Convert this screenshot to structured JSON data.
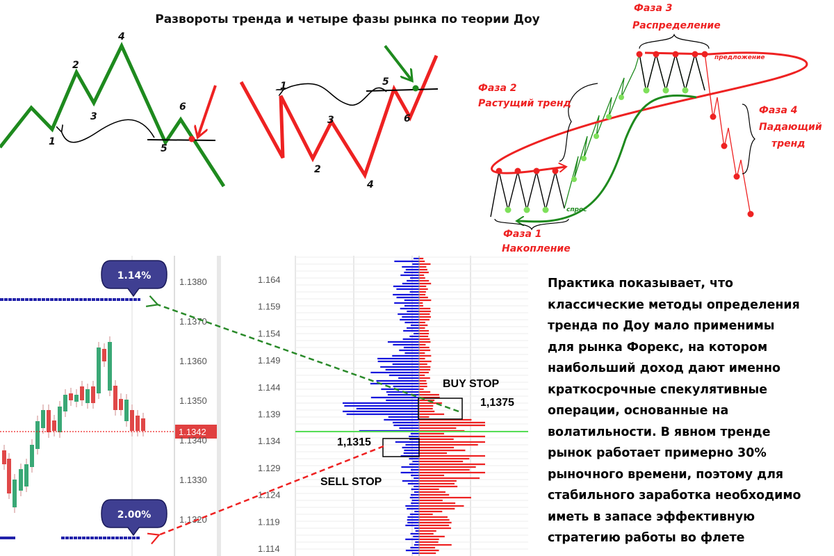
{
  "title": "Развороты тренда и четыре фазы рынка по теории Доу",
  "left_diagram": {
    "points": [
      "1",
      "2",
      "3",
      "4",
      "5",
      "6"
    ]
  },
  "middle_diagram": {
    "points": [
      "1",
      "2",
      "3",
      "4",
      "5",
      "6"
    ]
  },
  "phases": {
    "phase1": [
      "Фаза 1",
      "Накопление"
    ],
    "phase2": [
      "Фаза 2",
      "Растущий тренд"
    ],
    "phase3": [
      "Фаза 3",
      "Распределение"
    ],
    "phase4": [
      "Фаза 4",
      "Падающий",
      "тренд"
    ],
    "supply": "предложение",
    "demand": "спрос"
  },
  "candle_chart": {
    "price_ticks": [
      "1.1380",
      "1.1370",
      "1.1360",
      "1.1350",
      "1.1340",
      "1.1330",
      "1.1320"
    ],
    "current_price": "1.1342",
    "badge_top": "1.14%",
    "badge_bottom": "2.00%"
  },
  "order_book": {
    "price_ticks": [
      "1.164",
      "1.159",
      "1.154",
      "1.149",
      "1.144",
      "1.139",
      "1.134",
      "1.129",
      "1.124",
      "1.119",
      "1.114"
    ],
    "buy_stop_label": "BUY STOP",
    "buy_stop_price": "1,1375",
    "sell_stop_label": "SELL STOP",
    "sell_stop_price": "1,1315"
  },
  "paragraph": [
    "Практика показывает, что",
    "классические методы определения",
    "тренда по Доу мало применимы",
    "для рынка Форекс, на котором",
    "наибольший доход дают именно",
    "краткосрочные спекулятивные",
    "операции, основанные на",
    "волатильности. В явном тренде",
    "рынок работает примерно 30%",
    "рыночного времени, поэтому для",
    "стабильного заработка необходимо",
    "иметь в запасе эффективную",
    "стратегию работы во флете"
  ],
  "colors": {
    "green": "#1e8a1e",
    "red": "#ee2222",
    "blue": "#1111dd",
    "navy": "#1a1a7a",
    "badge": "#3f3f92"
  }
}
